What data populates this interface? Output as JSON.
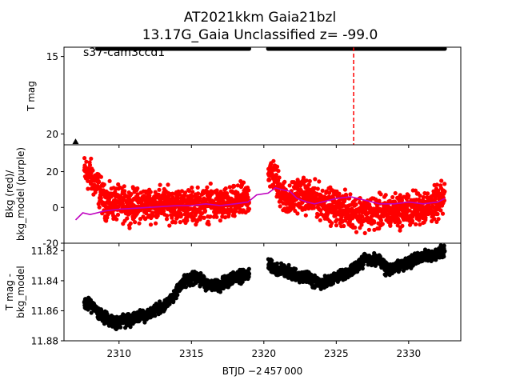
{
  "title_line1": "AT2021kkm  Gaia21bzl",
  "title_line2": "13.17G_Gaia Unclassified z= -99.0",
  "panel_top_annotation": "s37-cam3ccd1",
  "xaxis": {
    "label": "BTJD −2 457 000",
    "ticks": [
      "2310",
      "2315",
      "2320",
      "2325",
      "2330"
    ]
  },
  "chart_data": [
    {
      "type": "scatter",
      "panel": "top",
      "ylabel": "T mag",
      "y_inverted": true,
      "xlim": [
        2306.2,
        2333.6
      ],
      "ylim": [
        20.7,
        14.4
      ],
      "yticks": [
        15,
        20
      ],
      "series": [
        {
          "name": "",
          "color": "#000000",
          "marker": "circle",
          "x_ranges": [
            [
              2308.5,
              2319.0
            ],
            [
              2320.3,
              2332.5
            ]
          ],
          "y": 14.5
        },
        {
          "name": "",
          "color": "#000000",
          "marker": "triangle-up",
          "x": [
            2307.0
          ],
          "y": [
            20.5
          ]
        }
      ],
      "vline": {
        "x": 2326.2,
        "color": "#ff0000",
        "style": "dashed"
      }
    },
    {
      "type": "scatter",
      "panel": "middle",
      "ylabel": "Bkg (red)/ bkg_model (purple)",
      "xlim": [
        2306.2,
        2333.6
      ],
      "ylim": [
        -20,
        35
      ],
      "yticks": [
        -20,
        0,
        20
      ],
      "series": [
        {
          "name": "",
          "color": "#ff0000",
          "marker": "circle",
          "trend_x": [
            2307.6,
            2308.0,
            2308.5,
            2309.0,
            2310.0,
            2311.0,
            2312.0,
            2313.0,
            2314.0,
            2315.0,
            2316.0,
            2317.0,
            2318.0,
            2318.9,
            2320.3,
            2320.7,
            2321.2,
            2321.8,
            2322.3,
            2323.0,
            2324.0,
            2325.0,
            2326.0,
            2327.0,
            2328.0,
            2329.0,
            2330.0,
            2331.0,
            2332.0,
            2332.5
          ],
          "trend_y": [
            20,
            18,
            12,
            3,
            2,
            1,
            2,
            2,
            1,
            1,
            2,
            1,
            2,
            5,
            20,
            18,
            8,
            3,
            8,
            6,
            3,
            0,
            -2,
            -3,
            -3,
            -2,
            -1,
            0,
            2,
            6
          ],
          "scatter_amplitude": 4.5
        },
        {
          "name": "",
          "color": "#bf00bf",
          "marker": "line",
          "x": [
            2307.0,
            2307.5,
            2308.0,
            2308.5,
            2309.0,
            2310.0,
            2311.0,
            2312.0,
            2313.0,
            2314.0,
            2315.0,
            2316.0,
            2317.0,
            2318.0,
            2318.9,
            2319.5,
            2320.3,
            2320.8,
            2321.2,
            2321.8,
            2322.3,
            2323.0,
            2323.5,
            2324.0,
            2325.0,
            2326.0,
            2327.0,
            2328.0,
            2329.0,
            2330.0,
            2331.0,
            2332.0,
            2332.5
          ],
          "y": [
            -7,
            -3,
            -4,
            -3,
            -2,
            -1,
            -0.5,
            0,
            0.5,
            1,
            1,
            2,
            1,
            2,
            3,
            7,
            8,
            11,
            10,
            9,
            5,
            3,
            2,
            3,
            5,
            6,
            4,
            2,
            2,
            3,
            2,
            3,
            5
          ]
        }
      ]
    },
    {
      "type": "scatter",
      "panel": "bottom",
      "ylabel": "T mag - bkg_model",
      "y_inverted": true,
      "xlim": [
        2306.2,
        2333.6
      ],
      "ylim": [
        11.88,
        11.815
      ],
      "yticks": [
        11.82,
        11.84,
        11.86,
        11.88
      ],
      "series": [
        {
          "name": "",
          "color": "#000000",
          "marker": "circle",
          "trend_x": [
            2307.6,
            2308.2,
            2308.7,
            2309.2,
            2310.0,
            2311.0,
            2312.0,
            2313.0,
            2313.6,
            2314.0,
            2314.6,
            2315.5,
            2316.0,
            2317.0,
            2318.0,
            2318.9,
            2320.3,
            2320.8,
            2321.3,
            2322.0,
            2323.0,
            2324.0,
            2325.0,
            2326.0,
            2326.5,
            2327.0,
            2328.0,
            2328.6,
            2329.0,
            2330.0,
            2331.0,
            2332.0,
            2332.5
          ],
          "trend_y": [
            11.855,
            11.857,
            11.862,
            11.866,
            11.868,
            11.865,
            11.862,
            11.858,
            11.852,
            11.846,
            11.839,
            11.838,
            11.842,
            11.843,
            11.838,
            11.836,
            11.829,
            11.833,
            11.832,
            11.836,
            11.838,
            11.842,
            11.838,
            11.834,
            11.83,
            11.825,
            11.827,
            11.833,
            11.831,
            11.828,
            11.824,
            11.822,
            11.82
          ],
          "scatter_amplitude": 0.002
        }
      ]
    }
  ]
}
